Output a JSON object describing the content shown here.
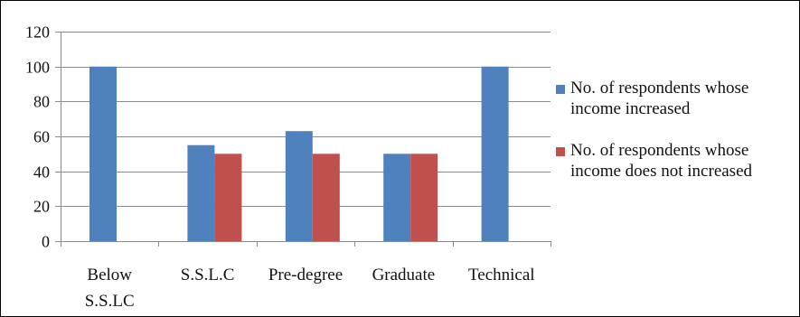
{
  "chart_data": {
    "type": "bar",
    "categories": [
      [
        "Below",
        "S.S.LC"
      ],
      [
        "S.S.L.C"
      ],
      [
        "Pre-degree"
      ],
      [
        "Graduate"
      ],
      [
        "Technical"
      ]
    ],
    "series": [
      {
        "name": [
          "No. of respondents whose",
          "income increased"
        ],
        "values": [
          100,
          55,
          63,
          50,
          100
        ],
        "color": "#4f81bd"
      },
      {
        "name": [
          "No. of respondents whose",
          "income does not increased"
        ],
        "values": [
          0,
          50,
          50,
          50,
          0
        ],
        "color": "#c0504d"
      }
    ],
    "yticks": [
      0,
      20,
      40,
      60,
      80,
      100,
      120
    ],
    "ylim": [
      0,
      120
    ],
    "grid": true,
    "legend_position": "right"
  }
}
